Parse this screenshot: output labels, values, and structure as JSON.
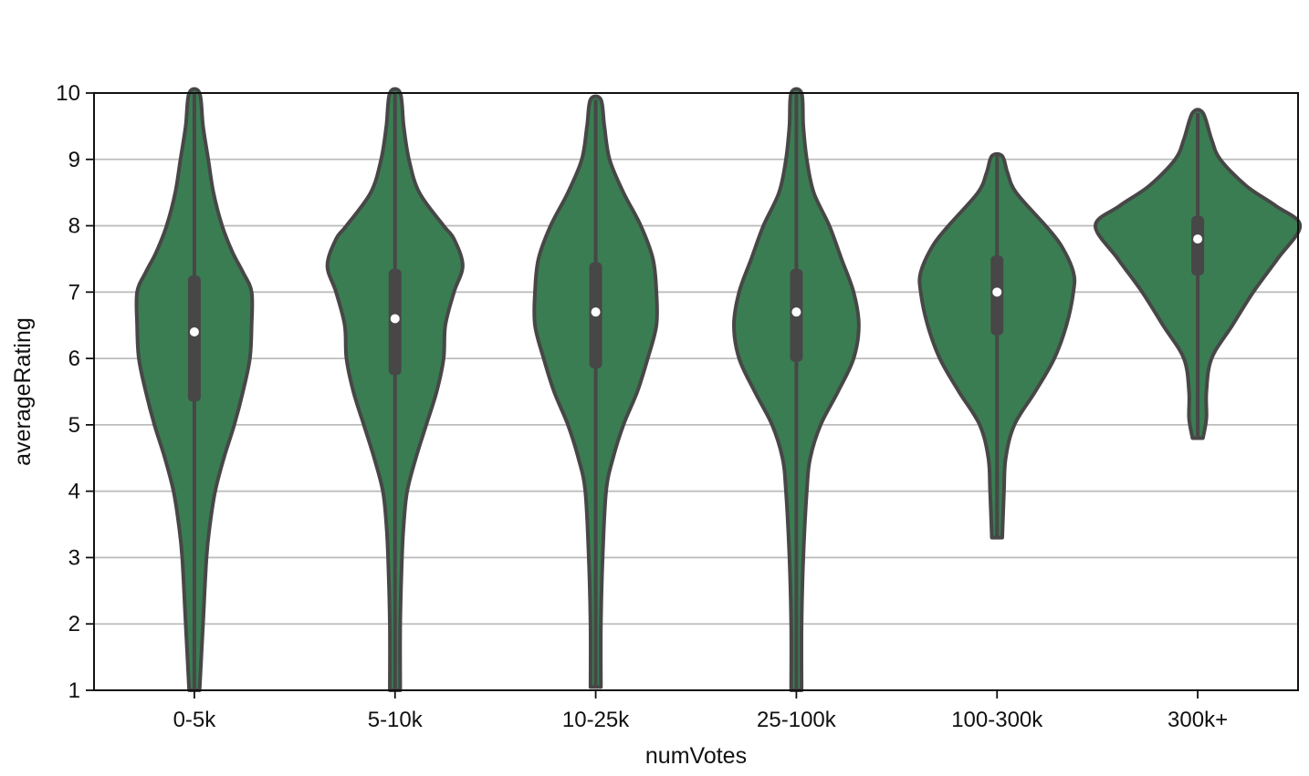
{
  "chart_data": {
    "type": "violin",
    "title": "",
    "xlabel": "numVotes",
    "ylabel": "averageRating",
    "ylim": [
      1,
      10
    ],
    "yticks": [
      1,
      2,
      3,
      4,
      5,
      6,
      7,
      8,
      9,
      10
    ],
    "grid": "horizontal",
    "fill_color": "#3a7d52",
    "line_color": "#474747",
    "grid_color": "#bdbdbd",
    "categories": [
      "0-5k",
      "5-10k",
      "10-25k",
      "25-100k",
      "100-300k",
      "300k+"
    ],
    "violins": [
      {
        "category": "0-5k",
        "min": 1.0,
        "max": 10.0,
        "q1": 5.35,
        "median": 6.4,
        "q3": 7.25,
        "whisker_low": 1.0,
        "whisker_high": 10.0,
        "profile": [
          [
            1.0,
            0.3
          ],
          [
            2.0,
            0.5
          ],
          [
            3.0,
            0.7
          ],
          [
            3.5,
            0.9
          ],
          [
            4.0,
            1.2
          ],
          [
            4.5,
            1.7
          ],
          [
            5.0,
            2.3
          ],
          [
            5.5,
            2.8
          ],
          [
            6.0,
            3.2
          ],
          [
            6.5,
            3.3
          ],
          [
            7.0,
            3.3
          ],
          [
            7.3,
            2.8
          ],
          [
            7.6,
            2.2
          ],
          [
            8.0,
            1.6
          ],
          [
            8.5,
            1.1
          ],
          [
            9.0,
            0.8
          ],
          [
            9.5,
            0.5
          ],
          [
            10.0,
            0.3
          ]
        ]
      },
      {
        "category": "5-10k",
        "min": 1.0,
        "max": 10.0,
        "q1": 5.75,
        "median": 6.6,
        "q3": 7.35,
        "whisker_low": 1.0,
        "whisker_high": 10.0,
        "profile": [
          [
            1.0,
            0.3
          ],
          [
            2.0,
            0.3
          ],
          [
            3.0,
            0.4
          ],
          [
            3.5,
            0.5
          ],
          [
            4.0,
            0.7
          ],
          [
            4.5,
            1.2
          ],
          [
            5.0,
            1.8
          ],
          [
            5.5,
            2.4
          ],
          [
            6.0,
            2.8
          ],
          [
            6.5,
            2.9
          ],
          [
            7.0,
            3.4
          ],
          [
            7.4,
            3.9
          ],
          [
            7.8,
            3.4
          ],
          [
            8.0,
            2.8
          ],
          [
            8.5,
            1.4
          ],
          [
            9.0,
            0.8
          ],
          [
            9.5,
            0.5
          ],
          [
            10.0,
            0.3
          ]
        ]
      },
      {
        "category": "10-25k",
        "min": 1.05,
        "max": 9.9,
        "q1": 5.85,
        "median": 6.7,
        "q3": 7.45,
        "whisker_low": 1.05,
        "whisker_high": 9.9,
        "profile": [
          [
            1.05,
            0.3
          ],
          [
            2.0,
            0.3
          ],
          [
            3.0,
            0.4
          ],
          [
            4.0,
            0.6
          ],
          [
            4.5,
            1.0
          ],
          [
            5.0,
            1.6
          ],
          [
            5.5,
            2.4
          ],
          [
            6.0,
            3.0
          ],
          [
            6.5,
            3.5
          ],
          [
            7.0,
            3.5
          ],
          [
            7.5,
            3.3
          ],
          [
            8.0,
            2.6
          ],
          [
            8.5,
            1.6
          ],
          [
            9.0,
            0.8
          ],
          [
            9.5,
            0.5
          ],
          [
            9.9,
            0.3
          ]
        ]
      },
      {
        "category": "25-100k",
        "min": 1.0,
        "max": 10.0,
        "q1": 5.95,
        "median": 6.7,
        "q3": 7.35,
        "whisker_low": 1.0,
        "whisker_high": 10.0,
        "profile": [
          [
            1.0,
            0.3
          ],
          [
            2.0,
            0.3
          ],
          [
            3.0,
            0.4
          ],
          [
            4.0,
            0.6
          ],
          [
            4.5,
            0.8
          ],
          [
            5.0,
            1.4
          ],
          [
            5.5,
            2.4
          ],
          [
            6.0,
            3.3
          ],
          [
            6.5,
            3.6
          ],
          [
            7.0,
            3.3
          ],
          [
            7.5,
            2.6
          ],
          [
            8.0,
            1.9
          ],
          [
            8.5,
            1.0
          ],
          [
            9.0,
            0.6
          ],
          [
            9.5,
            0.4
          ],
          [
            10.0,
            0.3
          ]
        ]
      },
      {
        "category": "100-300k",
        "min": 3.3,
        "max": 9.05,
        "q1": 6.35,
        "median": 7.0,
        "q3": 7.55,
        "whisker_low": 3.3,
        "whisker_high": 9.05,
        "profile": [
          [
            3.3,
            0.3
          ],
          [
            4.0,
            0.4
          ],
          [
            4.5,
            0.5
          ],
          [
            5.0,
            1.0
          ],
          [
            5.5,
            2.2
          ],
          [
            6.0,
            3.3
          ],
          [
            6.5,
            4.0
          ],
          [
            7.0,
            4.4
          ],
          [
            7.3,
            4.4
          ],
          [
            7.7,
            3.7
          ],
          [
            8.0,
            2.8
          ],
          [
            8.5,
            1.1
          ],
          [
            8.8,
            0.6
          ],
          [
            9.05,
            0.3
          ]
        ]
      },
      {
        "category": "300k+",
        "min": 4.8,
        "max": 9.7,
        "q1": 7.25,
        "median": 7.8,
        "q3": 8.15,
        "whisker_low": 4.8,
        "whisker_high": 9.7,
        "profile": [
          [
            4.8,
            0.3
          ],
          [
            5.1,
            0.5
          ],
          [
            5.5,
            0.5
          ],
          [
            6.0,
            0.8
          ],
          [
            6.5,
            2.0
          ],
          [
            7.0,
            3.2
          ],
          [
            7.5,
            4.6
          ],
          [
            8.0,
            5.9
          ],
          [
            8.3,
            4.5
          ],
          [
            8.6,
            2.8
          ],
          [
            9.0,
            1.3
          ],
          [
            9.3,
            0.8
          ],
          [
            9.7,
            0.3
          ]
        ]
      }
    ]
  }
}
